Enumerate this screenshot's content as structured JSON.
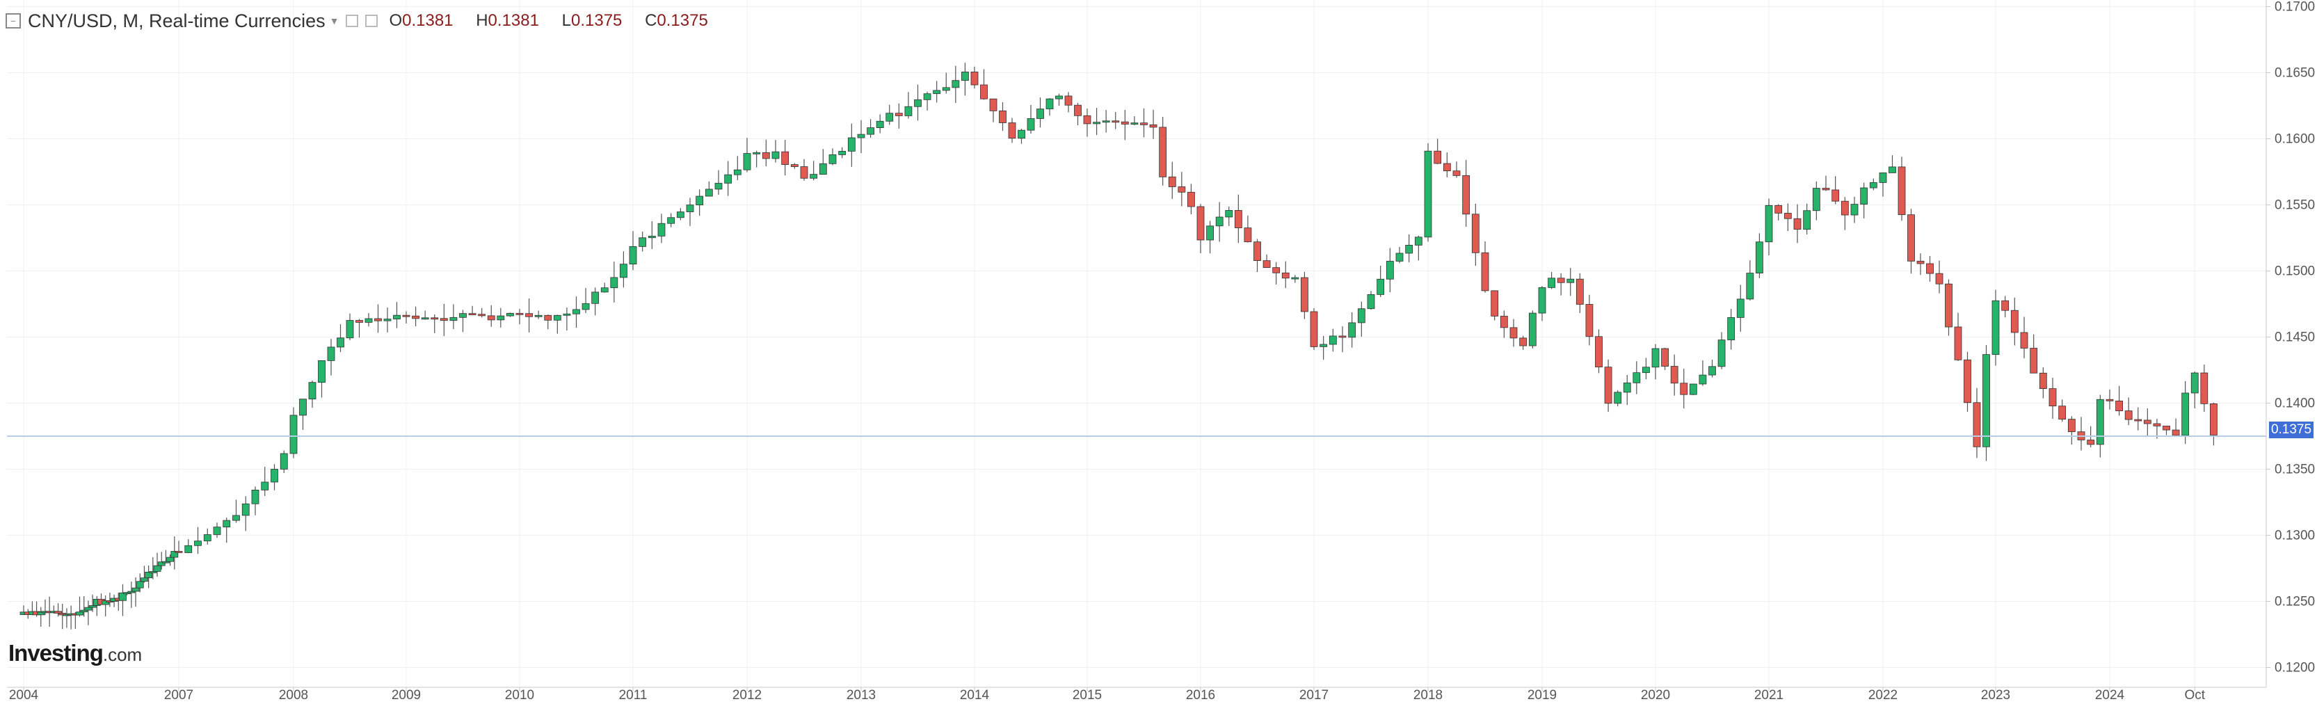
{
  "header": {
    "title": "CNY/USD, M, Real-time Currencies",
    "ohlc": {
      "o_key": "O",
      "o": "0.1381",
      "h_key": "H",
      "h": "0.1381",
      "l_key": "L",
      "l": "0.1375",
      "c_key": "C",
      "c": "0.1375"
    },
    "icons": [
      "collapse-icon",
      "dropdown-caret-icon",
      "settings-icon",
      "close-icon"
    ]
  },
  "logo": {
    "name": "Investing",
    "suffix": ".com"
  },
  "last_price": "0.1375",
  "colors": {
    "up": "#26b36a",
    "down": "#e05a52",
    "grid": "#f0f0f0",
    "axis": "#c8c8c8",
    "last_line": "#b8cde6",
    "badge": "#3f6ed8"
  },
  "chart_data": {
    "type": "candlestick",
    "title": "CNY/USD, M, Real-time Currencies",
    "ylim": [
      0.1185,
      0.1705
    ],
    "y_ticks": [
      "0.1700",
      "0.1650",
      "0.1600",
      "0.1550",
      "0.1500",
      "0.1450",
      "0.1400",
      "0.1350",
      "0.1300",
      "0.1250",
      "0.1200"
    ],
    "x_ticks": [
      {
        "label": "2004",
        "t": 2004.0
      },
      {
        "label": "2007",
        "t": 2007.0
      },
      {
        "label": "2008",
        "t": 2008.0
      },
      {
        "label": "2009",
        "t": 2009.0
      },
      {
        "label": "2010",
        "t": 2010.0
      },
      {
        "label": "2011",
        "t": 2011.0
      },
      {
        "label": "2012",
        "t": 2012.0
      },
      {
        "label": "2013",
        "t": 2013.0
      },
      {
        "label": "2014",
        "t": 2014.0
      },
      {
        "label": "2015",
        "t": 2015.0
      },
      {
        "label": "2016",
        "t": 2016.0
      },
      {
        "label": "2017",
        "t": 2017.0
      },
      {
        "label": "2018",
        "t": 2018.0
      },
      {
        "label": "2019",
        "t": 2019.0
      },
      {
        "label": "2020",
        "t": 2020.0
      },
      {
        "label": "2021",
        "t": 2021.0
      },
      {
        "label": "2022",
        "t": 2022.0
      },
      {
        "label": "2023",
        "t": 2023.0
      },
      {
        "label": "2024",
        "t": 2024.0
      },
      {
        "label": "Oct",
        "t": 2024.75
      }
    ],
    "last_price": 0.1375,
    "closes": [
      {
        "t": 2004.0,
        "c": 0.124
      },
      {
        "t": 2005.0,
        "c": 0.1242
      },
      {
        "t": 2005.5,
        "c": 0.125
      },
      {
        "t": 2006.0,
        "c": 0.1255
      },
      {
        "t": 2006.5,
        "c": 0.1272
      },
      {
        "t": 2007.0,
        "c": 0.1288
      },
      {
        "t": 2007.25,
        "c": 0.13
      },
      {
        "t": 2007.5,
        "c": 0.1318
      },
      {
        "t": 2007.75,
        "c": 0.1338
      },
      {
        "t": 2007.92,
        "c": 0.1365
      },
      {
        "t": 2008.0,
        "c": 0.1392
      },
      {
        "t": 2008.25,
        "c": 0.143
      },
      {
        "t": 2008.5,
        "c": 0.146
      },
      {
        "t": 2009.0,
        "c": 0.1465
      },
      {
        "t": 2010.0,
        "c": 0.1465
      },
      {
        "t": 2010.42,
        "c": 0.1466
      },
      {
        "t": 2010.58,
        "c": 0.1475
      },
      {
        "t": 2010.83,
        "c": 0.1495
      },
      {
        "t": 2011.0,
        "c": 0.1518
      },
      {
        "t": 2011.5,
        "c": 0.155
      },
      {
        "t": 2011.83,
        "c": 0.157
      },
      {
        "t": 2012.0,
        "c": 0.1588
      },
      {
        "t": 2012.25,
        "c": 0.1588
      },
      {
        "t": 2012.5,
        "c": 0.157
      },
      {
        "t": 2012.75,
        "c": 0.1585
      },
      {
        "t": 2013.0,
        "c": 0.1605
      },
      {
        "t": 2013.5,
        "c": 0.1628
      },
      {
        "t": 2013.92,
        "c": 0.165
      },
      {
        "t": 2014.08,
        "c": 0.1632
      },
      {
        "t": 2014.33,
        "c": 0.16
      },
      {
        "t": 2014.5,
        "c": 0.1615
      },
      {
        "t": 2014.75,
        "c": 0.1635
      },
      {
        "t": 2015.0,
        "c": 0.1612
      },
      {
        "t": 2015.25,
        "c": 0.1612
      },
      {
        "t": 2015.58,
        "c": 0.1612
      },
      {
        "t": 2015.67,
        "c": 0.157
      },
      {
        "t": 2015.92,
        "c": 0.155
      },
      {
        "t": 2016.0,
        "c": 0.1525
      },
      {
        "t": 2016.25,
        "c": 0.1548
      },
      {
        "t": 2016.5,
        "c": 0.1505
      },
      {
        "t": 2016.83,
        "c": 0.1495
      },
      {
        "t": 2017.0,
        "c": 0.1442
      },
      {
        "t": 2017.25,
        "c": 0.1452
      },
      {
        "t": 2017.5,
        "c": 0.148
      },
      {
        "t": 2017.67,
        "c": 0.1505
      },
      {
        "t": 2017.92,
        "c": 0.1525
      },
      {
        "t": 2018.0,
        "c": 0.159
      },
      {
        "t": 2018.25,
        "c": 0.157
      },
      {
        "t": 2018.42,
        "c": 0.151
      },
      {
        "t": 2018.58,
        "c": 0.1465
      },
      {
        "t": 2018.83,
        "c": 0.144
      },
      {
        "t": 2019.0,
        "c": 0.149
      },
      {
        "t": 2019.25,
        "c": 0.1495
      },
      {
        "t": 2019.42,
        "c": 0.145
      },
      {
        "t": 2019.58,
        "c": 0.14
      },
      {
        "t": 2019.83,
        "c": 0.142
      },
      {
        "t": 2020.0,
        "c": 0.144
      },
      {
        "t": 2020.25,
        "c": 0.1405
      },
      {
        "t": 2020.5,
        "c": 0.143
      },
      {
        "t": 2020.83,
        "c": 0.1495
      },
      {
        "t": 2021.0,
        "c": 0.155
      },
      {
        "t": 2021.25,
        "c": 0.153
      },
      {
        "t": 2021.42,
        "c": 0.1565
      },
      {
        "t": 2021.67,
        "c": 0.1545
      },
      {
        "t": 2021.92,
        "c": 0.157
      },
      {
        "t": 2022.08,
        "c": 0.158
      },
      {
        "t": 2022.25,
        "c": 0.151
      },
      {
        "t": 2022.5,
        "c": 0.149
      },
      {
        "t": 2022.75,
        "c": 0.14
      },
      {
        "t": 2022.83,
        "c": 0.1365
      },
      {
        "t": 2022.92,
        "c": 0.144
      },
      {
        "t": 2023.0,
        "c": 0.148
      },
      {
        "t": 2023.17,
        "c": 0.1455
      },
      {
        "t": 2023.42,
        "c": 0.141
      },
      {
        "t": 2023.67,
        "c": 0.1375
      },
      {
        "t": 2023.83,
        "c": 0.1368
      },
      {
        "t": 2023.92,
        "c": 0.1405
      },
      {
        "t": 2024.17,
        "c": 0.139
      },
      {
        "t": 2024.42,
        "c": 0.138
      },
      {
        "t": 2024.58,
        "c": 0.1375
      },
      {
        "t": 2024.67,
        "c": 0.141
      },
      {
        "t": 2024.75,
        "c": 0.142
      },
      {
        "t": 2024.83,
        "c": 0.14
      },
      {
        "t": 2024.92,
        "c": 0.1375
      }
    ]
  }
}
